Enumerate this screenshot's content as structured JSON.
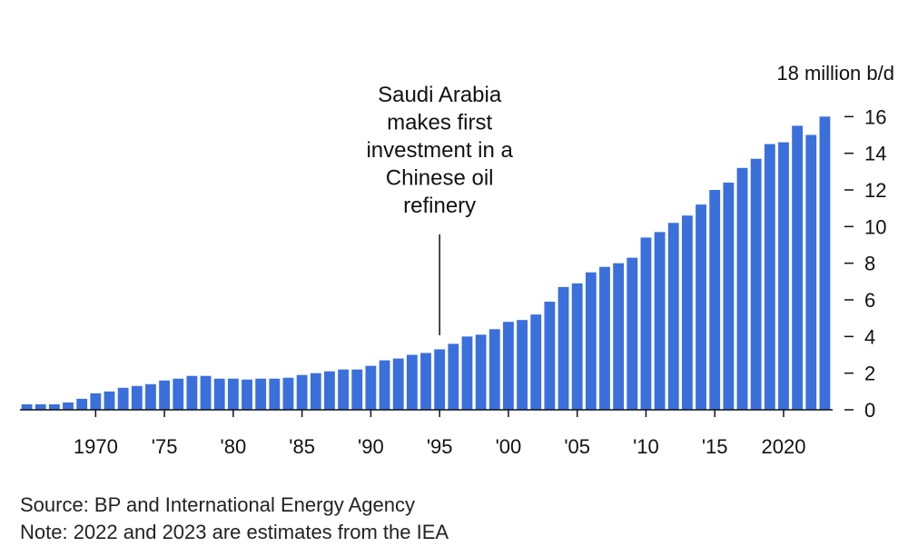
{
  "chart_data": {
    "type": "bar",
    "y_unit_label": "18 million b/d",
    "x": [
      1965,
      1966,
      1967,
      1968,
      1969,
      1970,
      1971,
      1972,
      1973,
      1974,
      1975,
      1976,
      1977,
      1978,
      1979,
      1980,
      1981,
      1982,
      1983,
      1984,
      1985,
      1986,
      1987,
      1988,
      1989,
      1990,
      1991,
      1992,
      1993,
      1994,
      1995,
      1996,
      1997,
      1998,
      1999,
      2000,
      2001,
      2002,
      2003,
      2004,
      2005,
      2006,
      2007,
      2008,
      2009,
      2010,
      2011,
      2012,
      2013,
      2014,
      2015,
      2016,
      2017,
      2018,
      2019,
      2020,
      2021,
      2022,
      2023
    ],
    "values": [
      0.3,
      0.3,
      0.3,
      0.4,
      0.6,
      0.9,
      1.0,
      1.2,
      1.3,
      1.4,
      1.6,
      1.7,
      1.85,
      1.85,
      1.7,
      1.7,
      1.65,
      1.7,
      1.7,
      1.75,
      1.9,
      2.0,
      2.1,
      2.2,
      2.2,
      2.4,
      2.7,
      2.8,
      3.0,
      3.1,
      3.3,
      3.6,
      4.0,
      4.1,
      4.4,
      4.8,
      4.9,
      5.2,
      5.9,
      6.7,
      6.9,
      7.5,
      7.8,
      8.0,
      8.3,
      9.4,
      9.7,
      10.2,
      10.6,
      11.2,
      12.0,
      12.4,
      13.2,
      13.7,
      14.5,
      14.6,
      15.5,
      15.0,
      16.0
    ],
    "ylim": [
      0,
      18
    ],
    "y_ticks": [
      {
        "value": 0,
        "label": "0"
      },
      {
        "value": 2,
        "label": "2"
      },
      {
        "value": 4,
        "label": "4"
      },
      {
        "value": 6,
        "label": "6"
      },
      {
        "value": 8,
        "label": "8"
      },
      {
        "value": 10,
        "label": "10"
      },
      {
        "value": 12,
        "label": "12"
      },
      {
        "value": 14,
        "label": "14"
      },
      {
        "value": 16,
        "label": "16"
      }
    ],
    "x_ticks": [
      {
        "value": 1970,
        "label": "1970"
      },
      {
        "value": 1975,
        "label": "'75"
      },
      {
        "value": 1980,
        "label": "'80"
      },
      {
        "value": 1985,
        "label": "'85"
      },
      {
        "value": 1990,
        "label": "'90"
      },
      {
        "value": 1995,
        "label": "'95"
      },
      {
        "value": 2000,
        "label": "'00"
      },
      {
        "value": 2005,
        "label": "'05"
      },
      {
        "value": 2010,
        "label": "'10"
      },
      {
        "value": 2015,
        "label": "'15"
      },
      {
        "value": 2020,
        "label": "2020"
      }
    ],
    "annotation": {
      "x": 1995,
      "lines": [
        "Saudi Arabia",
        "makes first",
        "investment in a",
        "Chinese oil",
        "refinery"
      ]
    },
    "bar_color": "#3a6fdc",
    "axis_side": "right",
    "grid": false,
    "legend": "none"
  },
  "footer": {
    "source": "Source: BP and International Energy Agency",
    "note": "Note: 2022 and 2023 are estimates from the IEA"
  }
}
